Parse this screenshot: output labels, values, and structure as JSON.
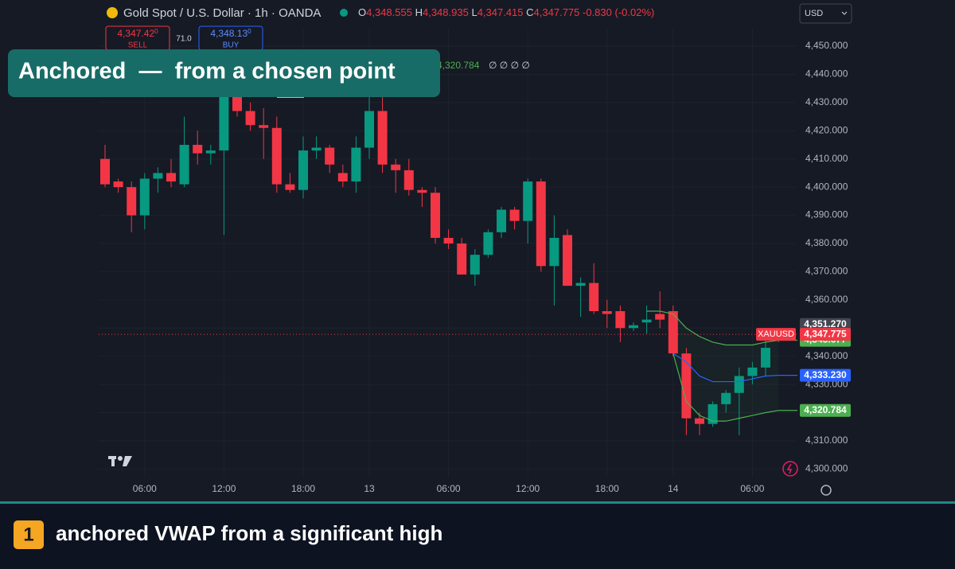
{
  "header": {
    "symbol": "Gold Spot / U.S. Dollar · 1h · OANDA",
    "ohlc": [
      {
        "key": "O",
        "value": "4,348.555"
      },
      {
        "key": "H",
        "value": "4,348.935"
      },
      {
        "key": "L",
        "value": "4,347.415"
      },
      {
        "key": "C",
        "value": "4,347.775"
      }
    ],
    "change": "-0.830 (-0.02%)"
  },
  "trade": {
    "sell_price": "4,347.42",
    "sell_sup": "0",
    "sell_label": "SELL",
    "spread": "71.0",
    "buy_price": "4,348.13",
    "buy_sup": "0",
    "buy_label": "BUY"
  },
  "currency": "USD",
  "banner": "Anchored  —  from a chosen point",
  "legend_partial": {
    "value": "4,320.784",
    "extra": "∅ ∅ ∅ ∅"
  },
  "chart_data": {
    "type": "candlestick",
    "categories": [
      null,
      null,
      null,
      "06:00",
      null,
      null,
      null,
      null,
      null,
      "12:00",
      null,
      null,
      null,
      null,
      null,
      "18:00",
      null,
      null,
      null,
      null,
      "13",
      null,
      null,
      null,
      null,
      null,
      "06:00",
      null,
      null,
      null,
      null,
      null,
      "12:00",
      null,
      null,
      null,
      null,
      null,
      "18:00",
      null,
      null,
      null,
      null,
      "14",
      null,
      null,
      null,
      null,
      null,
      "06:00",
      null,
      null
    ],
    "open": [
      4410,
      4402,
      4400,
      4390,
      4403,
      4405,
      4401,
      4415,
      4412,
      4413,
      4432,
      4427,
      4422,
      4421,
      4401,
      4399,
      4413,
      4414,
      4405,
      4402,
      4414,
      4427,
      4408,
      4406,
      4399,
      4398,
      4382,
      4380,
      4369,
      4376,
      4384,
      4392,
      4388,
      4402,
      4372,
      4383,
      4365,
      4366,
      4356,
      4356,
      4350,
      4352,
      4355,
      4356,
      4341,
      4318,
      4316,
      4323,
      4327,
      4333,
      4336,
      4346
    ],
    "high": [
      4415,
      4403,
      4402,
      4405,
      4407,
      4410,
      4425,
      4420,
      4415,
      4440,
      4435,
      4430,
      4428,
      4425,
      4405,
      4418,
      4418,
      4415,
      4408,
      4418,
      4435,
      4435,
      4410,
      4410,
      4400,
      4400,
      4385,
      4382,
      4378,
      4385,
      4393,
      4393,
      4403,
      4403,
      4390,
      4385,
      4368,
      4373,
      4360,
      4358,
      4352,
      4358,
      4363,
      4358,
      4343,
      4320,
      4324,
      4328,
      4336,
      4338,
      4346,
      4350
    ],
    "low": [
      4400,
      4398,
      4384,
      4385,
      4398,
      4400,
      4400,
      4408,
      4408,
      4383,
      4425,
      4420,
      4410,
      4398,
      4398,
      4396,
      4410,
      4405,
      4400,
      4398,
      4410,
      4405,
      4398,
      4397,
      4393,
      4380,
      4378,
      4369,
      4365,
      4375,
      4382,
      4385,
      4380,
      4370,
      4358,
      4365,
      4354,
      4355,
      4350,
      4345,
      4349,
      4348,
      4350,
      4340,
      4312,
      4312,
      4315,
      4320,
      4312,
      4330,
      4333,
      4345
    ],
    "close": [
      4401,
      4400,
      4390,
      4403,
      4405,
      4402,
      4415,
      4412,
      4413,
      4432,
      4427,
      4422,
      4421,
      4401,
      4399,
      4413,
      4414,
      4408,
      4402,
      4414,
      4427,
      4408,
      4406,
      4399,
      4398,
      4382,
      4380,
      4369,
      4376,
      4384,
      4392,
      4388,
      4402,
      4372,
      4382,
      4365,
      4366,
      4356,
      4355,
      4350,
      4351,
      4353,
      4353,
      4341,
      4318,
      4316,
      4323,
      4327,
      4333,
      4336,
      4343,
      4347.775
    ],
    "up_color": "#089981",
    "down_color": "#f23645",
    "ylim": [
      4297,
      4456.5
    ],
    "yticks": [
      {
        "value": 4300,
        "label": "4,300.000"
      },
      {
        "value": 4310,
        "label": "4,310.000"
      },
      {
        "value": 4320,
        "label": "4,320.000"
      },
      {
        "value": 4330,
        "label": "4,330.000"
      },
      {
        "value": 4340,
        "label": "4,340.000"
      },
      {
        "value": 4350,
        "label": "4,350.000"
      },
      {
        "value": 4360,
        "label": "4,360.000"
      },
      {
        "value": 4370,
        "label": "4,370.000"
      },
      {
        "value": 4380,
        "label": "4,380.000"
      },
      {
        "value": 4390,
        "label": "4,390.000"
      },
      {
        "value": 4400,
        "label": "4,400.000"
      },
      {
        "value": 4410,
        "label": "4,410.000"
      },
      {
        "value": 4420,
        "label": "4,420.000"
      },
      {
        "value": 4430,
        "label": "4,430.000"
      },
      {
        "value": 4440,
        "label": "4,440.000"
      },
      {
        "value": 4450,
        "label": "4,450.000"
      }
    ],
    "grid": true,
    "series": [
      {
        "color": "#4caf50",
        "end_label": "4,345.677",
        "values": [
          null,
          null,
          null,
          null,
          null,
          null,
          null,
          null,
          null,
          null,
          null,
          null,
          null,
          null,
          null,
          null,
          null,
          null,
          null,
          null,
          null,
          null,
          null,
          null,
          null,
          null,
          null,
          null,
          null,
          null,
          null,
          null,
          null,
          null,
          null,
          null,
          null,
          null,
          null,
          null,
          null,
          4356,
          4356,
          4355,
          4350,
          4347,
          4345,
          4344,
          4344,
          4344,
          4345,
          4345.677
        ]
      },
      {
        "color": "#2962ff",
        "end_label": "4,333.230",
        "values": [
          null,
          null,
          null,
          null,
          null,
          null,
          null,
          null,
          null,
          null,
          null,
          null,
          null,
          null,
          null,
          null,
          null,
          null,
          null,
          null,
          null,
          null,
          null,
          null,
          null,
          null,
          null,
          null,
          null,
          null,
          null,
          null,
          null,
          null,
          null,
          null,
          null,
          null,
          null,
          null,
          null,
          null,
          null,
          4341,
          4338,
          4333,
          4331,
          4331,
          4331,
          4332,
          4333,
          4333.23
        ]
      },
      {
        "color": "#4caf50",
        "end_label": "4,320.784",
        "values": [
          null,
          null,
          null,
          null,
          null,
          null,
          null,
          null,
          null,
          null,
          null,
          null,
          null,
          null,
          null,
          null,
          null,
          null,
          null,
          null,
          null,
          null,
          null,
          null,
          null,
          null,
          null,
          null,
          null,
          null,
          null,
          null,
          null,
          null,
          null,
          null,
          null,
          null,
          null,
          null,
          null,
          null,
          null,
          4341,
          4324,
          4319,
          4317,
          4317,
          4318,
          4319,
          4320,
          4320.784
        ]
      }
    ],
    "last_price": {
      "value": 4347.775,
      "label": "4,347.775",
      "tag": "XAUUSD",
      "color": "#f23645"
    },
    "marker_price": {
      "value": 4351.27,
      "label": "4,351.270"
    }
  },
  "caption": {
    "number": "1",
    "text": "anchored VWAP from a significant high"
  }
}
